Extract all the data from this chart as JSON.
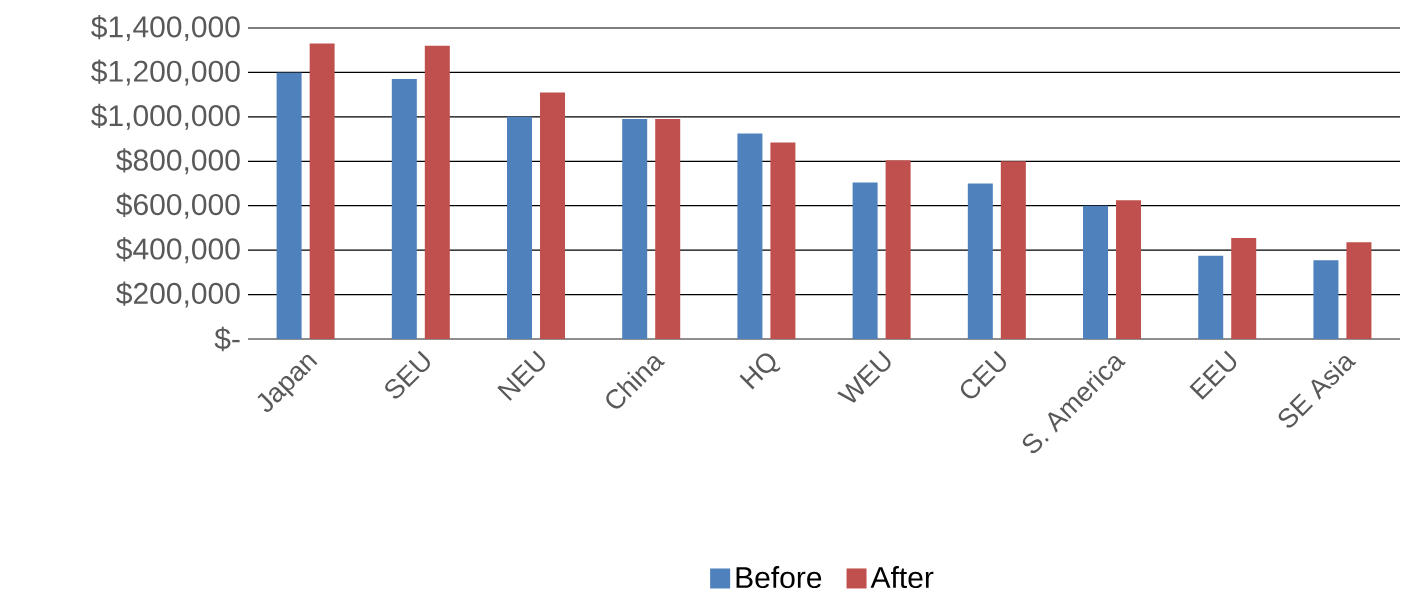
{
  "chart_data": {
    "type": "bar",
    "categories": [
      "Japan",
      "SEU",
      "NEU",
      "China",
      "HQ",
      "WEU",
      "CEU",
      "S. America",
      "EEU",
      "SE Asia"
    ],
    "series": [
      {
        "name": "Before",
        "color": "#4f81bd",
        "values": [
          1200000,
          1170000,
          1000000,
          990000,
          925000,
          705000,
          700000,
          600000,
          375000,
          355000
        ]
      },
      {
        "name": "After",
        "color": "#c0504d",
        "values": [
          1330000,
          1320000,
          1110000,
          990000,
          885000,
          805000,
          800000,
          625000,
          455000,
          435000
        ]
      }
    ],
    "ylim": [
      0,
      1400000
    ],
    "yticks": [
      {
        "value": 0,
        "label": "$-"
      },
      {
        "value": 200000,
        "label": "$200,000"
      },
      {
        "value": 400000,
        "label": "$400,000"
      },
      {
        "value": 600000,
        "label": "$600,000"
      },
      {
        "value": 800000,
        "label": "$800,000"
      },
      {
        "value": 1000000,
        "label": "$1,000,000"
      },
      {
        "value": 1200000,
        "label": "$1,200,000"
      },
      {
        "value": 1400000,
        "label": "$1,400,000"
      }
    ],
    "grid": "y",
    "legend": "bottom"
  }
}
